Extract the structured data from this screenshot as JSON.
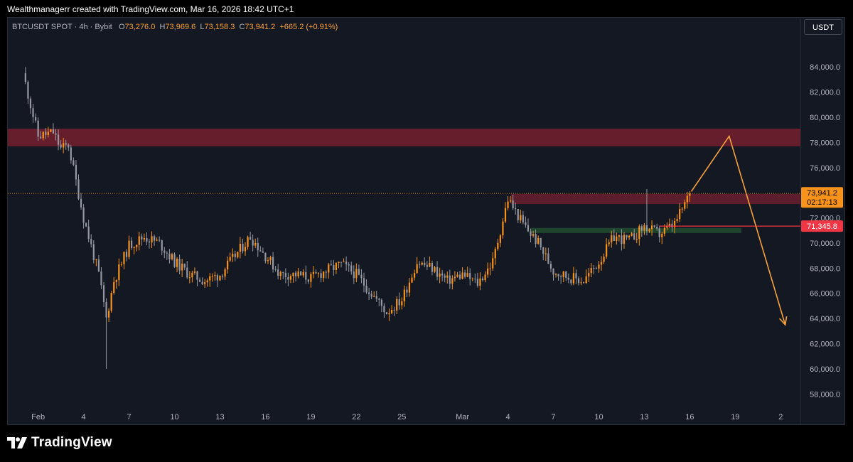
{
  "header": {
    "attribution": "Wealthmanagerr created with TradingView.com, Mar 16, 2026 18:42 UTC+1"
  },
  "symbol_bar": {
    "symbol": "BTCUSDT SPOT · 4h · Bybit",
    "open_label": "O",
    "open": "73,276.0",
    "high_label": "H",
    "high": "73,969.6",
    "low_label": "L",
    "low": "73,158.3",
    "close_label": "C",
    "close": "73,941.2",
    "change": "+665.2 (+0.91%)"
  },
  "currency_button": {
    "label": "USDT"
  },
  "price_labels": {
    "last_price": "73,941.2",
    "countdown": "02:17:13",
    "red_line_price": "71,345.8"
  },
  "footer": {
    "brand": "TradingView"
  },
  "colors": {
    "up": "#f7931a",
    "down": "#9598a1",
    "background": "#141823",
    "resistance_zone": "#7a2030",
    "support_zone": "#1f4a2c",
    "marker_line": "#f23645",
    "projection": "#f7a13b"
  },
  "chart_data": {
    "type": "candlestick",
    "title": "BTCUSDT SPOT · 4h · Bybit",
    "currency": "USDT",
    "ylim": [
      57000,
      86500
    ],
    "y_ticks": [
      84000,
      82000,
      80000,
      78000,
      76000,
      74000,
      72000,
      70000,
      68000,
      66000,
      64000,
      62000,
      60000,
      58000
    ],
    "x_ticks": [
      {
        "label": "Feb",
        "day": 1
      },
      {
        "label": "4",
        "day": 4
      },
      {
        "label": "7",
        "day": 7
      },
      {
        "label": "10",
        "day": 10
      },
      {
        "label": "13",
        "day": 13
      },
      {
        "label": "16",
        "day": 16
      },
      {
        "label": "19",
        "day": 19
      },
      {
        "label": "22",
        "day": 22
      },
      {
        "label": "25",
        "day": 25
      },
      {
        "label": "Mar",
        "day": 29
      },
      {
        "label": "4",
        "day": 32
      },
      {
        "label": "7",
        "day": 35
      },
      {
        "label": "10",
        "day": 38
      },
      {
        "label": "13",
        "day": 41
      },
      {
        "label": "16",
        "day": 44
      },
      {
        "label": "19",
        "day": 47
      },
      {
        "label": "2",
        "day": 50
      }
    ],
    "path": [
      [
        0,
        83500
      ],
      [
        1,
        78500
      ],
      [
        2,
        78800
      ],
      [
        2.5,
        77500
      ],
      [
        3,
        77800
      ],
      [
        4,
        72000
      ],
      [
        5,
        67500
      ],
      [
        5.5,
        64000
      ],
      [
        6,
        67000
      ],
      [
        7,
        69800
      ],
      [
        8,
        70500
      ],
      [
        9,
        70000
      ],
      [
        10,
        68500
      ],
      [
        11,
        67500
      ],
      [
        12,
        67000
      ],
      [
        13,
        67500
      ],
      [
        14,
        69000
      ],
      [
        15,
        70500
      ],
      [
        16,
        69000
      ],
      [
        17,
        67500
      ],
      [
        18,
        67500
      ],
      [
        19,
        67200
      ],
      [
        20,
        67800
      ],
      [
        21,
        68300
      ],
      [
        22,
        67500
      ],
      [
        23,
        66000
      ],
      [
        24,
        64500
      ],
      [
        25,
        65500
      ],
      [
        26,
        68500
      ],
      [
        27,
        68000
      ],
      [
        28,
        67000
      ],
      [
        29,
        67500
      ],
      [
        30,
        66800
      ],
      [
        31,
        68500
      ],
      [
        32,
        73500
      ],
      [
        33,
        71500
      ],
      [
        34,
        70000
      ],
      [
        35,
        67800
      ],
      [
        36,
        67300
      ],
      [
        37,
        67000
      ],
      [
        38,
        68500
      ],
      [
        39,
        70500
      ],
      [
        40,
        70200
      ],
      [
        41,
        71300
      ],
      [
        42,
        70700
      ],
      [
        43,
        71500
      ],
      [
        43.7,
        73200
      ],
      [
        44,
        73941.2
      ]
    ],
    "resistance_zone": {
      "from": 77700,
      "to": 79100
    },
    "upper_zone": {
      "from": 73100,
      "to": 73900,
      "start_day": 32.2
    },
    "support_zone": {
      "from": 70800,
      "to": 71200,
      "start_day": 33.5,
      "end_day": 47.4
    },
    "marked_level": {
      "price": 71345.8,
      "start_day": 42
    },
    "last_price": 73941.2,
    "projection": [
      [
        44.1,
        74100
      ],
      [
        46.6,
        78500
      ],
      [
        50.3,
        63500
      ]
    ]
  }
}
